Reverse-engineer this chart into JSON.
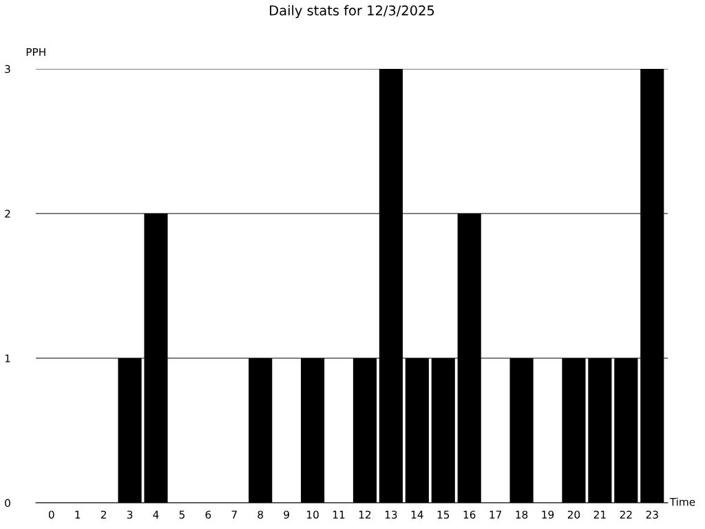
{
  "chart_data": {
    "type": "bar",
    "title": "Daily stats for 12/3/2025",
    "xlabel": "Time",
    "ylabel": "PPH",
    "categories": [
      "0",
      "1",
      "2",
      "3",
      "4",
      "5",
      "6",
      "7",
      "8",
      "9",
      "10",
      "11",
      "12",
      "13",
      "14",
      "15",
      "16",
      "17",
      "18",
      "19",
      "20",
      "21",
      "22",
      "23"
    ],
    "values": [
      0,
      0,
      0,
      1,
      2,
      0,
      0,
      0,
      1,
      0,
      1,
      0,
      1,
      3,
      1,
      1,
      2,
      0,
      1,
      0,
      1,
      1,
      1,
      3
    ],
    "color": "#000000",
    "ylim": [
      0,
      3
    ],
    "yticks": [
      0,
      1,
      2,
      3
    ],
    "grid": "y",
    "legend": false
  }
}
